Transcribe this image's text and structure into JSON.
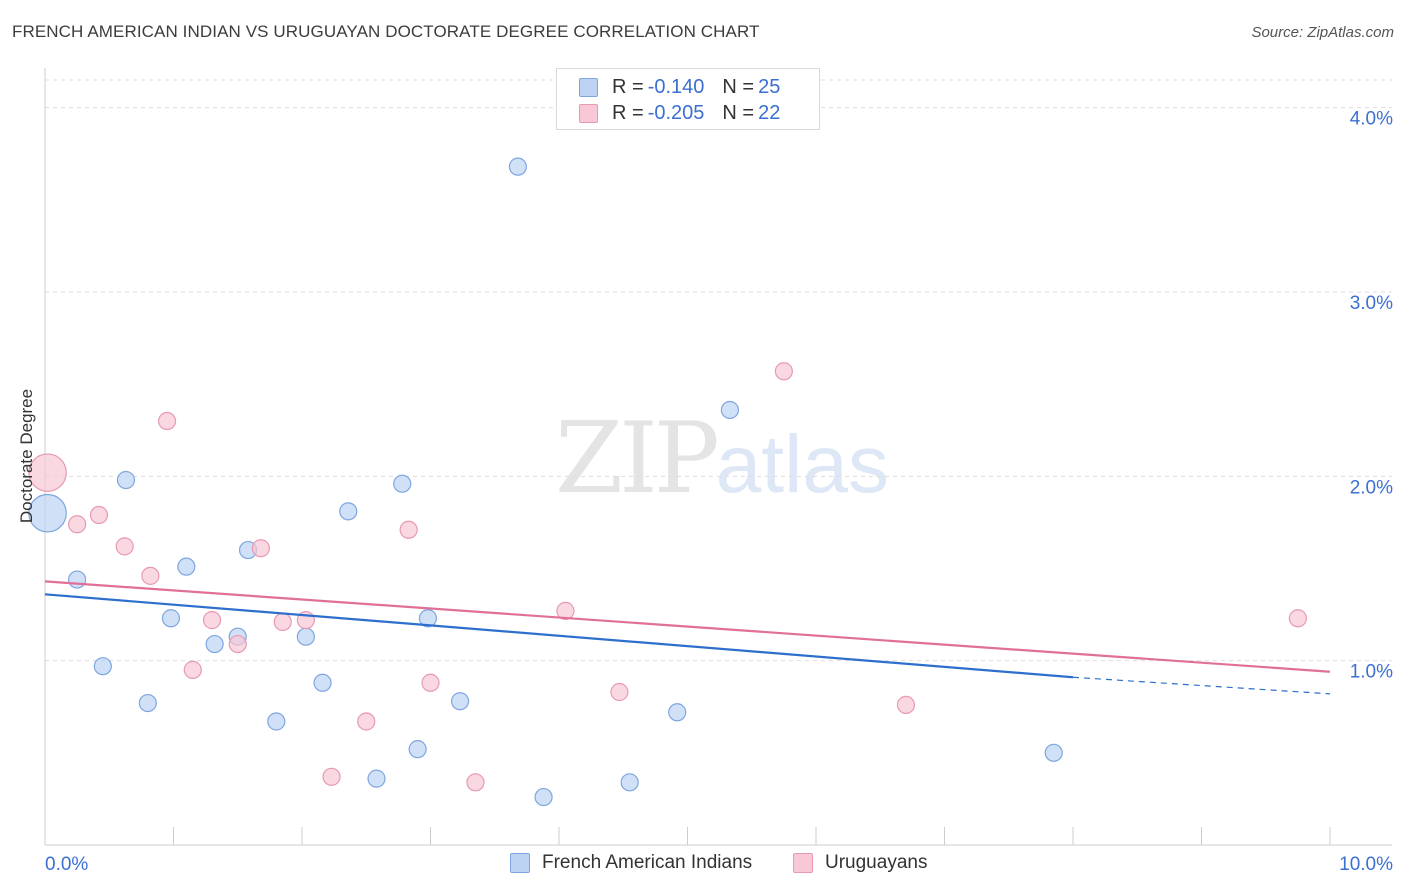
{
  "title": "FRENCH AMERICAN INDIAN VS URUGUAYAN DOCTORATE DEGREE CORRELATION CHART",
  "source": "Source: ZipAtlas.com",
  "watermark": {
    "zip": "ZIP",
    "atlas": "atlas"
  },
  "legend_top": [
    {
      "r_label": "R = ",
      "r_value": "-0.140",
      "n_label": "N = ",
      "n_value": "25"
    },
    {
      "r_label": "R = ",
      "r_value": "-0.205",
      "n_label": "N = ",
      "n_value": "22"
    }
  ],
  "colors": {
    "blue_fill": "#bcd3f3",
    "blue_stroke": "#7ea6e0",
    "blue_line": "#2d6fcc",
    "pink_fill": "#f8c8d6",
    "pink_stroke": "#e899b2",
    "pink_line": "#e07096",
    "tick_label": "#3b6fd1",
    "grid": "#dddddd"
  },
  "chart_data": {
    "type": "scatter",
    "title": "FRENCH AMERICAN INDIAN VS URUGUAYAN DOCTORATE DEGREE CORRELATION CHART",
    "xlabel": "",
    "ylabel": "Doctorate Degree",
    "xlim": [
      0,
      10
    ],
    "ylim": [
      0,
      4.15
    ],
    "x_tick_labels": [
      "0.0%",
      "10.0%"
    ],
    "y_ticks": [
      1,
      2,
      3,
      4
    ],
    "y_tick_labels": [
      "1.0%",
      "2.0%",
      "3.0%",
      "4.0%"
    ],
    "grid": true,
    "legend_position": "bottom",
    "series": [
      {
        "name": "French American Indians",
        "r": -0.14,
        "n": 25,
        "points": [
          {
            "x": 0.02,
            "y": 1.8,
            "size": 2.2
          },
          {
            "x": 0.25,
            "y": 1.44,
            "size": 1
          },
          {
            "x": 0.45,
            "y": 0.97,
            "size": 1
          },
          {
            "x": 0.63,
            "y": 1.98,
            "size": 1
          },
          {
            "x": 0.8,
            "y": 0.77,
            "size": 1
          },
          {
            "x": 0.98,
            "y": 1.23,
            "size": 1
          },
          {
            "x": 1.1,
            "y": 1.51,
            "size": 1
          },
          {
            "x": 1.32,
            "y": 1.09,
            "size": 1
          },
          {
            "x": 1.5,
            "y": 1.13,
            "size": 1
          },
          {
            "x": 1.58,
            "y": 1.6,
            "size": 1
          },
          {
            "x": 1.8,
            "y": 0.67,
            "size": 1
          },
          {
            "x": 2.03,
            "y": 1.13,
            "size": 1
          },
          {
            "x": 2.16,
            "y": 0.88,
            "size": 1
          },
          {
            "x": 2.36,
            "y": 1.81,
            "size": 1
          },
          {
            "x": 2.58,
            "y": 0.36,
            "size": 1
          },
          {
            "x": 2.78,
            "y": 1.96,
            "size": 1
          },
          {
            "x": 2.9,
            "y": 0.52,
            "size": 1
          },
          {
            "x": 2.98,
            "y": 1.23,
            "size": 1
          },
          {
            "x": 3.23,
            "y": 0.78,
            "size": 1
          },
          {
            "x": 3.68,
            "y": 3.68,
            "size": 1
          },
          {
            "x": 3.88,
            "y": 0.26,
            "size": 1
          },
          {
            "x": 4.55,
            "y": 0.34,
            "size": 1
          },
          {
            "x": 4.92,
            "y": 0.72,
            "size": 1
          },
          {
            "x": 5.33,
            "y": 2.36,
            "size": 1
          },
          {
            "x": 7.85,
            "y": 0.5,
            "size": 1
          }
        ],
        "trend": {
          "x0": 0,
          "y0": 1.36,
          "x1": 8.0,
          "y1": 0.91,
          "dash_to_x": 10,
          "dash_to_y": 0.82
        }
      },
      {
        "name": "Uruguayans",
        "r": -0.205,
        "n": 22,
        "points": [
          {
            "x": 0.02,
            "y": 2.02,
            "size": 2.2
          },
          {
            "x": 0.25,
            "y": 1.74,
            "size": 1
          },
          {
            "x": 0.42,
            "y": 1.79,
            "size": 1
          },
          {
            "x": 0.62,
            "y": 1.62,
            "size": 1
          },
          {
            "x": 0.82,
            "y": 1.46,
            "size": 1
          },
          {
            "x": 0.95,
            "y": 2.3,
            "size": 1
          },
          {
            "x": 1.15,
            "y": 0.95,
            "size": 1
          },
          {
            "x": 1.3,
            "y": 1.22,
            "size": 1
          },
          {
            "x": 1.5,
            "y": 1.09,
            "size": 1
          },
          {
            "x": 1.68,
            "y": 1.61,
            "size": 1
          },
          {
            "x": 1.85,
            "y": 1.21,
            "size": 1
          },
          {
            "x": 2.03,
            "y": 1.22,
            "size": 1
          },
          {
            "x": 2.23,
            "y": 0.37,
            "size": 1
          },
          {
            "x": 2.5,
            "y": 0.67,
            "size": 1
          },
          {
            "x": 2.83,
            "y": 1.71,
            "size": 1
          },
          {
            "x": 3.0,
            "y": 0.88,
            "size": 1
          },
          {
            "x": 3.35,
            "y": 0.34,
            "size": 1
          },
          {
            "x": 4.05,
            "y": 1.27,
            "size": 1
          },
          {
            "x": 4.47,
            "y": 0.83,
            "size": 1
          },
          {
            "x": 5.75,
            "y": 2.57,
            "size": 1
          },
          {
            "x": 6.7,
            "y": 0.76,
            "size": 1
          },
          {
            "x": 9.75,
            "y": 1.23,
            "size": 1
          }
        ],
        "trend": {
          "x0": 0,
          "y0": 1.43,
          "x1": 10.0,
          "y1": 0.94
        }
      }
    ]
  }
}
